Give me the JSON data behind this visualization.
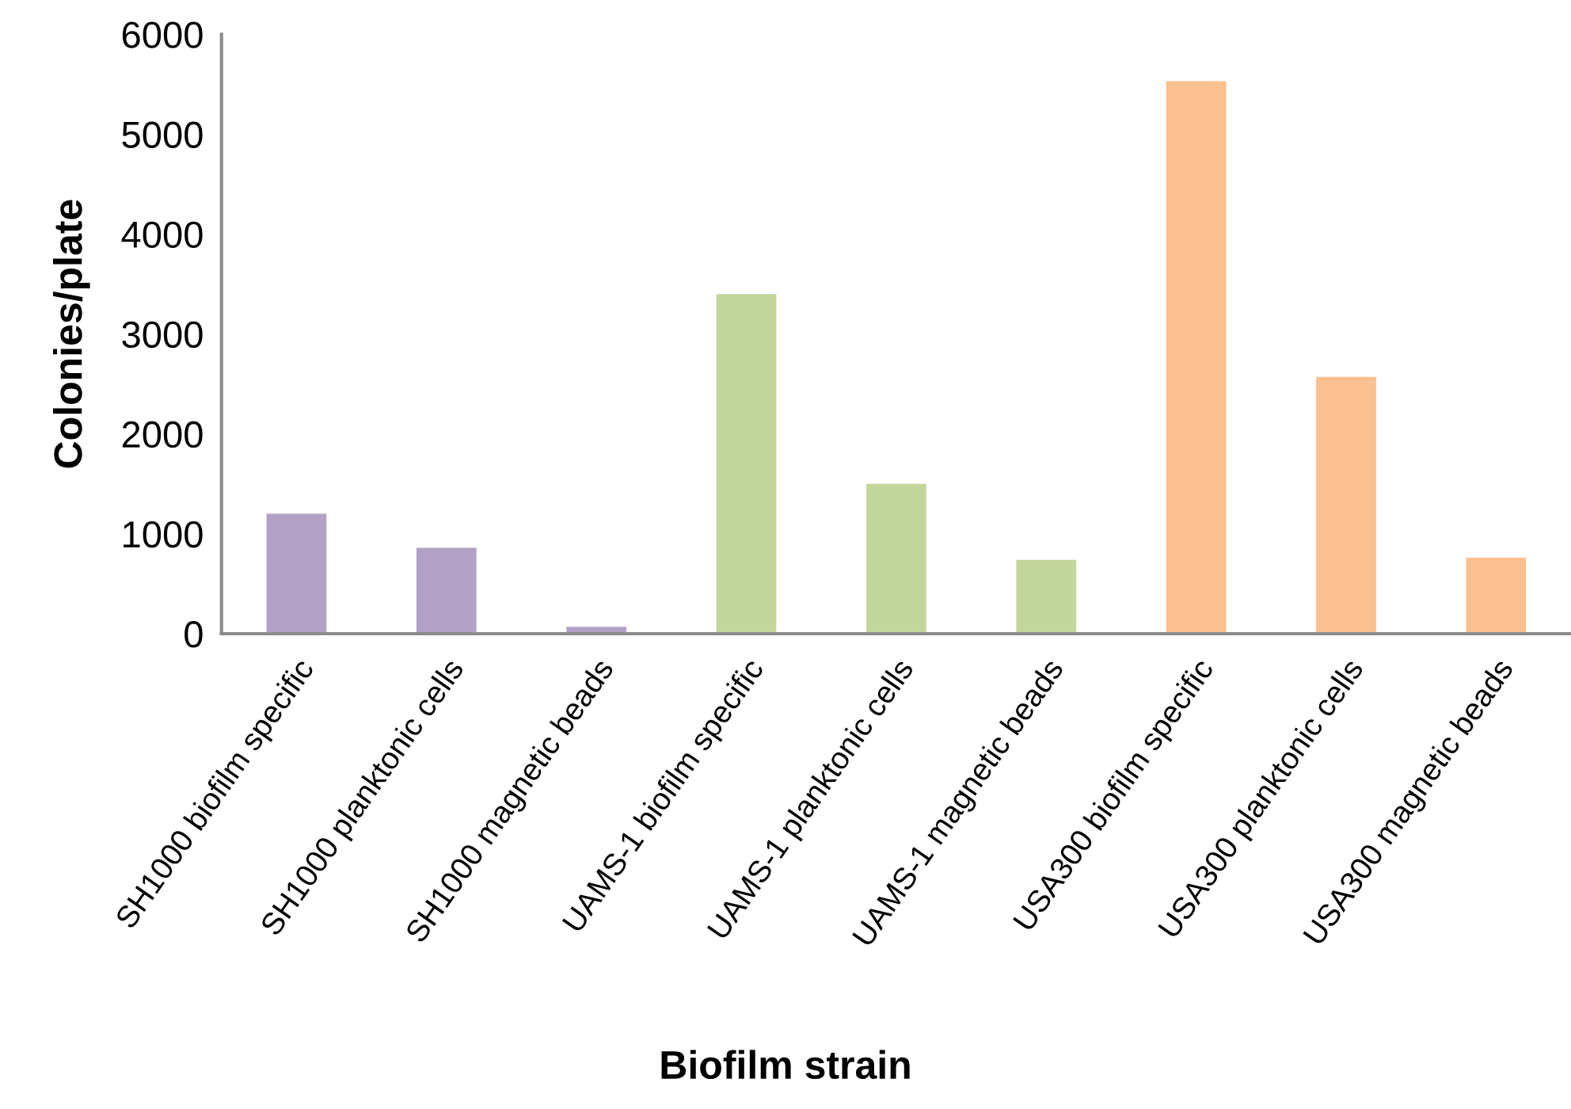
{
  "chart_data": {
    "type": "bar",
    "xlabel": "Biofilm strain",
    "ylabel": "Colonies/plate",
    "categories": [
      "SH1000 biofilm specific",
      "SH1000 planktonic cells",
      "SH1000 magnetic beads",
      "UAMS-1 biofilm specific",
      "UAMS-1 planktonic cells",
      "UAMS-1 magnetic beads",
      "USA300 biofilm specific",
      "USA300 planktonic cells",
      "USA300 magnetic beads"
    ],
    "values": [
      1200,
      860,
      70,
      3400,
      1500,
      740,
      5530,
      2570,
      760
    ],
    "colors": [
      "#b2a2c7",
      "#b2a2c7",
      "#b2a2c7",
      "#c3d69b",
      "#c3d69b",
      "#c3d69b",
      "#fac090",
      "#fac090",
      "#fac090"
    ],
    "ylim": [
      0,
      6000
    ],
    "yticks": [
      0,
      1000,
      2000,
      3000,
      4000,
      5000,
      6000
    ],
    "grid": false,
    "legend": false
  }
}
